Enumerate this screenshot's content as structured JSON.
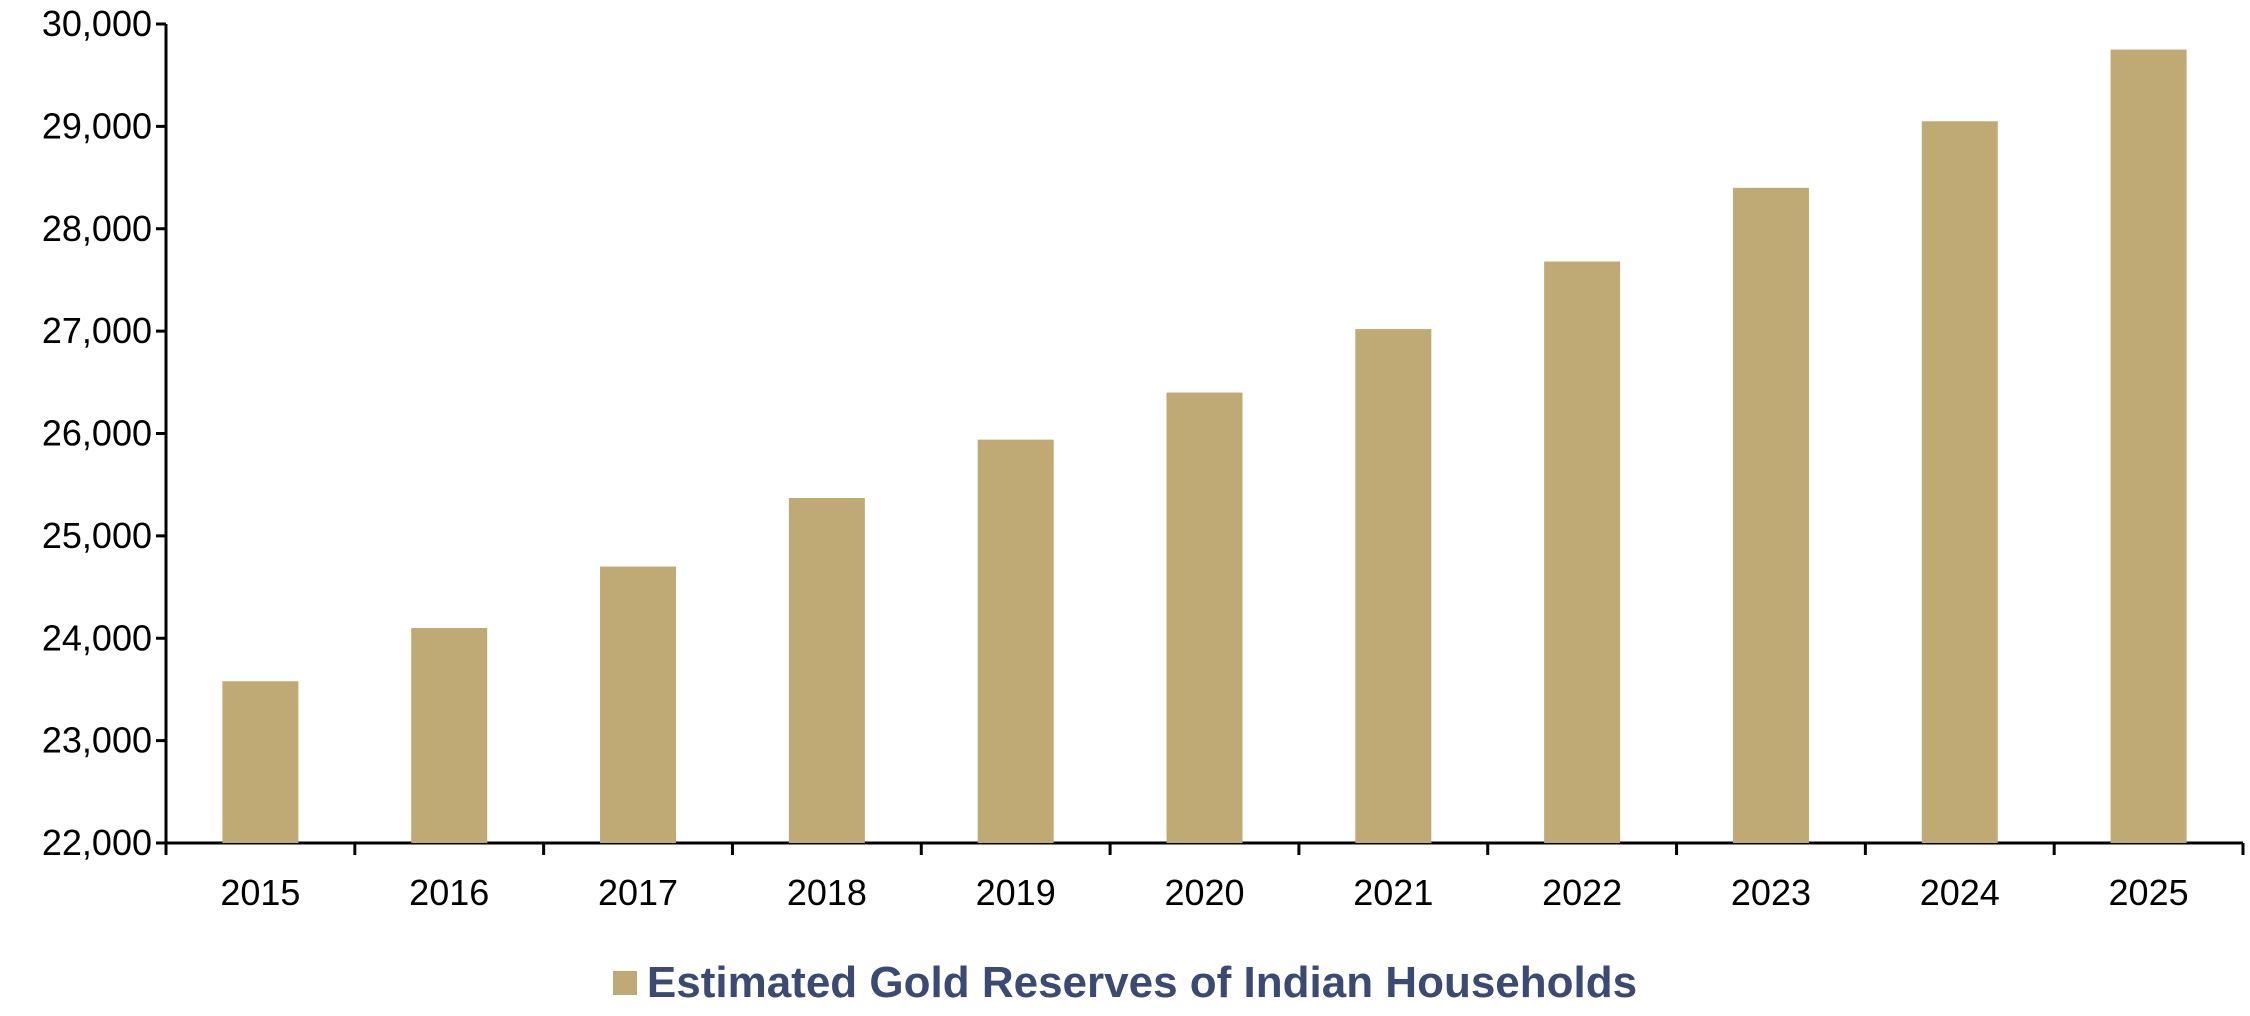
{
  "chart_data": {
    "type": "bar",
    "categories": [
      "2015",
      "2016",
      "2017",
      "2018",
      "2019",
      "2020",
      "2021",
      "2022",
      "2023",
      "2024",
      "2025"
    ],
    "series": [
      {
        "name": "Estimated Gold Reserves of Indian Households",
        "values": [
          23580,
          24100,
          24700,
          25370,
          25940,
          26400,
          27020,
          27680,
          28400,
          29050,
          29750
        ]
      }
    ],
    "title": "",
    "xlabel": "",
    "ylabel": "",
    "ylim": [
      22000,
      30000
    ],
    "yticks": [
      "22,000",
      "23,000",
      "24,000",
      "25,000",
      "26,000",
      "27,000",
      "28,000",
      "29,000",
      "30,000"
    ],
    "grid": false,
    "legend_position": "bottom-center",
    "colors": {
      "bar": "#BFA974",
      "axis": "#000000",
      "legend_text": "#3A4A72"
    }
  }
}
